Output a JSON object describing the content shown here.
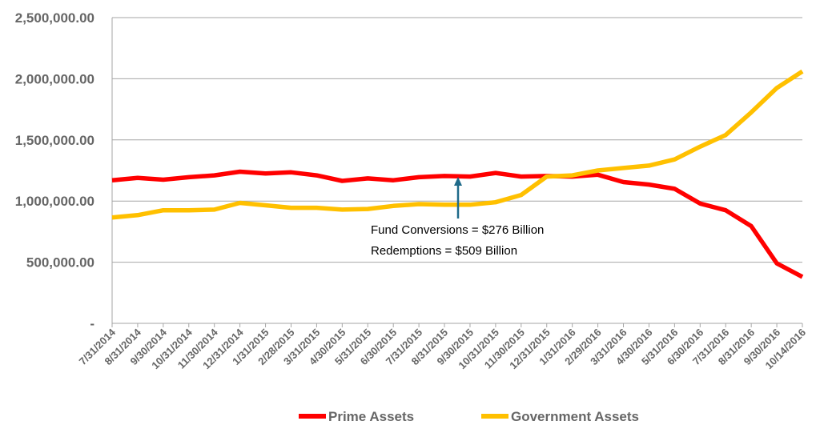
{
  "chart_data": {
    "type": "line",
    "title": "",
    "xlabel": "",
    "ylabel": "",
    "ylim": [
      0,
      2500000
    ],
    "y_ticks": [
      0,
      500000,
      1000000,
      1500000,
      2000000,
      2500000
    ],
    "y_tick_labels": [
      "-",
      "500,000.00",
      "1,000,000.00",
      "1,500,000.00",
      "2,000,000.00",
      "2,500,000.00"
    ],
    "grid": "horizontal",
    "legend_position": "bottom",
    "categories": [
      "7/31/2014",
      "8/31/2014",
      "9/30/2014",
      "10/31/2014",
      "11/30/2014",
      "12/31/2014",
      "1/31/2015",
      "2/28/2015",
      "3/31/2015",
      "4/30/2015",
      "5/31/2015",
      "6/30/2015",
      "7/31/2015",
      "8/31/2015",
      "9/30/2015",
      "10/31/2015",
      "11/30/2015",
      "12/31/2015",
      "1/31/2016",
      "2/29/2016",
      "3/31/2016",
      "4/30/2016",
      "5/31/2016",
      "6/30/2016",
      "7/31/2016",
      "8/31/2016",
      "9/30/2016",
      "10/14/2016"
    ],
    "series": [
      {
        "name": "Prime Assets",
        "color": "#FF0000",
        "values": [
          1170000,
          1190000,
          1175000,
          1195000,
          1210000,
          1240000,
          1225000,
          1235000,
          1210000,
          1165000,
          1185000,
          1170000,
          1195000,
          1205000,
          1200000,
          1230000,
          1200000,
          1205000,
          1200000,
          1215000,
          1155000,
          1135000,
          1100000,
          980000,
          925000,
          795000,
          490000,
          380000
        ]
      },
      {
        "name": "Government Assets",
        "color": "#FFC000",
        "values": [
          865000,
          885000,
          925000,
          925000,
          930000,
          985000,
          965000,
          945000,
          945000,
          930000,
          935000,
          960000,
          975000,
          970000,
          970000,
          990000,
          1050000,
          1200000,
          1210000,
          1250000,
          1270000,
          1290000,
          1340000,
          1445000,
          1540000,
          1725000,
          1925000,
          2060000
        ]
      }
    ],
    "annotations": [
      {
        "text": "Fund Conversions = $276 Billion",
        "arrow_at": "9/30/2015"
      },
      {
        "text": "Redemptions = $509 Billion"
      }
    ],
    "arrow_color": "#1F6B8A"
  }
}
